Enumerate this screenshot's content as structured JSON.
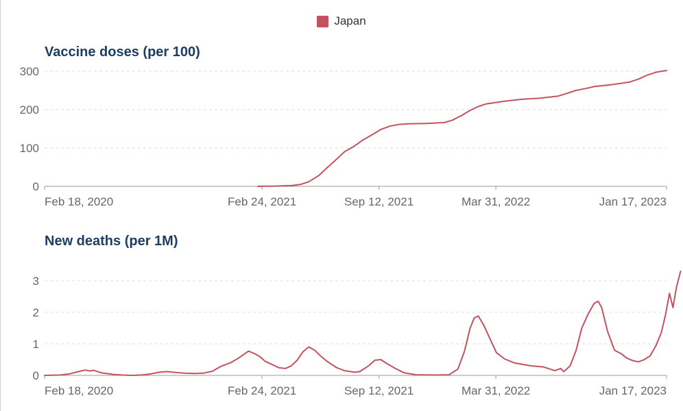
{
  "legend": {
    "label": "Japan",
    "color": "#c4515f"
  },
  "chart_data": [
    {
      "type": "line",
      "title": "Vaccine doses (per 100)",
      "xlabel": "",
      "ylabel": "",
      "ylim": [
        0,
        300
      ],
      "yticks": [
        "0",
        "100",
        "200",
        "300"
      ],
      "x_tick_labels": [
        "Feb 18, 2020",
        "Feb 24, 2021",
        "Sep 12, 2021",
        "Mar 31, 2022",
        "Jan 17, 2023"
      ],
      "x_tick_dates": [
        "2020-02-18",
        "2021-02-24",
        "2021-09-12",
        "2022-03-31",
        "2023-01-17"
      ],
      "x_range": [
        "2020-02-18",
        "2023-01-17"
      ],
      "grid": true,
      "legend_position": "top-center",
      "series": [
        {
          "name": "Japan",
          "color": "#c4515f",
          "points": [
            [
              "2021-02-17",
              0
            ],
            [
              "2021-03-15",
              0.5
            ],
            [
              "2021-04-15",
              2
            ],
            [
              "2021-05-01",
              5
            ],
            [
              "2021-05-15",
              12
            ],
            [
              "2021-06-01",
              28
            ],
            [
              "2021-06-15",
              48
            ],
            [
              "2021-07-01",
              70
            ],
            [
              "2021-07-15",
              90
            ],
            [
              "2021-08-01",
              105
            ],
            [
              "2021-08-15",
              120
            ],
            [
              "2021-09-01",
              135
            ],
            [
              "2021-09-15",
              148
            ],
            [
              "2021-10-01",
              157
            ],
            [
              "2021-10-15",
              161
            ],
            [
              "2021-11-01",
              163
            ],
            [
              "2021-12-01",
              164
            ],
            [
              "2022-01-01",
              166
            ],
            [
              "2022-01-15",
              172
            ],
            [
              "2022-02-01",
              185
            ],
            [
              "2022-02-15",
              198
            ],
            [
              "2022-03-01",
              208
            ],
            [
              "2022-03-15",
              215
            ],
            [
              "2022-04-15",
              222
            ],
            [
              "2022-05-15",
              227
            ],
            [
              "2022-06-15",
              230
            ],
            [
              "2022-07-15",
              235
            ],
            [
              "2022-08-01",
              243
            ],
            [
              "2022-08-15",
              250
            ],
            [
              "2022-09-01",
              255
            ],
            [
              "2022-09-15",
              260
            ],
            [
              "2022-10-15",
              265
            ],
            [
              "2022-11-15",
              272
            ],
            [
              "2022-12-01",
              280
            ],
            [
              "2022-12-15",
              290
            ],
            [
              "2023-01-01",
              298
            ],
            [
              "2023-01-17",
              302
            ]
          ]
        }
      ]
    },
    {
      "type": "line",
      "title": "New deaths (per 1M)",
      "xlabel": "",
      "ylabel": "",
      "ylim": [
        0,
        3.3
      ],
      "yticks": [
        "0",
        "1",
        "2",
        "3"
      ],
      "x_tick_labels": [
        "Feb 18, 2020",
        "Feb 24, 2021",
        "Sep 12, 2021",
        "Mar 31, 2022",
        "Jan 17, 2023"
      ],
      "x_tick_dates": [
        "2020-02-18",
        "2021-02-24",
        "2021-09-12",
        "2022-03-31",
        "2023-01-17"
      ],
      "x_range": [
        "2020-02-18",
        "2023-01-17"
      ],
      "grid": true,
      "legend_position": "top-center",
      "series": [
        {
          "name": "Japan",
          "color": "#c4515f",
          "points": [
            [
              "2020-02-18",
              0
            ],
            [
              "2020-03-15",
              0.01
            ],
            [
              "2020-04-01",
              0.05
            ],
            [
              "2020-04-20",
              0.14
            ],
            [
              "2020-04-28",
              0.17
            ],
            [
              "2020-05-05",
              0.14
            ],
            [
              "2020-05-12",
              0.16
            ],
            [
              "2020-05-25",
              0.08
            ],
            [
              "2020-06-15",
              0.03
            ],
            [
              "2020-07-01",
              0.01
            ],
            [
              "2020-07-15",
              0.0
            ],
            [
              "2020-08-01",
              0.01
            ],
            [
              "2020-08-15",
              0.04
            ],
            [
              "2020-09-01",
              0.1
            ],
            [
              "2020-09-15",
              0.12
            ],
            [
              "2020-10-01",
              0.09
            ],
            [
              "2020-10-15",
              0.07
            ],
            [
              "2020-11-01",
              0.06
            ],
            [
              "2020-11-15",
              0.07
            ],
            [
              "2020-12-01",
              0.13
            ],
            [
              "2020-12-15",
              0.28
            ],
            [
              "2021-01-01",
              0.4
            ],
            [
              "2021-01-15",
              0.55
            ],
            [
              "2021-01-25",
              0.68
            ],
            [
              "2021-02-01",
              0.77
            ],
            [
              "2021-02-10",
              0.7
            ],
            [
              "2021-02-20",
              0.6
            ],
            [
              "2021-03-01",
              0.45
            ],
            [
              "2021-03-15",
              0.33
            ],
            [
              "2021-03-25",
              0.24
            ],
            [
              "2021-04-05",
              0.22
            ],
            [
              "2021-04-15",
              0.3
            ],
            [
              "2021-04-25",
              0.48
            ],
            [
              "2021-05-05",
              0.75
            ],
            [
              "2021-05-15",
              0.9
            ],
            [
              "2021-05-25",
              0.8
            ],
            [
              "2021-06-05",
              0.6
            ],
            [
              "2021-06-15",
              0.45
            ],
            [
              "2021-07-01",
              0.25
            ],
            [
              "2021-07-15",
              0.15
            ],
            [
              "2021-08-01",
              0.1
            ],
            [
              "2021-08-10",
              0.12
            ],
            [
              "2021-08-25",
              0.3
            ],
            [
              "2021-09-05",
              0.48
            ],
            [
              "2021-09-15",
              0.5
            ],
            [
              "2021-09-25",
              0.38
            ],
            [
              "2021-10-10",
              0.22
            ],
            [
              "2021-10-25",
              0.08
            ],
            [
              "2021-11-15",
              0.02
            ],
            [
              "2021-12-15",
              0.01
            ],
            [
              "2022-01-10",
              0.02
            ],
            [
              "2022-01-25",
              0.2
            ],
            [
              "2022-02-05",
              0.75
            ],
            [
              "2022-02-15",
              1.5
            ],
            [
              "2022-02-22",
              1.82
            ],
            [
              "2022-03-01",
              1.88
            ],
            [
              "2022-03-10",
              1.6
            ],
            [
              "2022-03-20",
              1.2
            ],
            [
              "2022-04-01",
              0.72
            ],
            [
              "2022-04-15",
              0.52
            ],
            [
              "2022-05-01",
              0.4
            ],
            [
              "2022-05-15",
              0.35
            ],
            [
              "2022-06-01",
              0.3
            ],
            [
              "2022-06-20",
              0.27
            ],
            [
              "2022-07-10",
              0.15
            ],
            [
              "2022-07-20",
              0.22
            ],
            [
              "2022-07-25",
              0.12
            ],
            [
              "2022-08-05",
              0.3
            ],
            [
              "2022-08-15",
              0.78
            ],
            [
              "2022-08-25",
              1.5
            ],
            [
              "2022-09-05",
              1.95
            ],
            [
              "2022-09-15",
              2.28
            ],
            [
              "2022-09-22",
              2.35
            ],
            [
              "2022-09-28",
              2.15
            ],
            [
              "2022-10-08",
              1.4
            ],
            [
              "2022-10-20",
              0.8
            ],
            [
              "2022-11-01",
              0.68
            ],
            [
              "2022-11-10",
              0.55
            ],
            [
              "2022-11-20",
              0.47
            ],
            [
              "2022-11-30",
              0.43
            ],
            [
              "2022-12-10",
              0.5
            ],
            [
              "2022-12-20",
              0.62
            ],
            [
              "2022-12-30",
              0.95
            ],
            [
              "2023-01-08",
              1.35
            ],
            [
              "2023-01-15",
              1.9
            ],
            [
              "2023-01-22",
              2.6
            ],
            [
              "2023-01-28",
              2.15
            ],
            [
              "2023-02-03",
              2.8
            ],
            [
              "2023-02-10",
              3.3
            ]
          ]
        }
      ]
    }
  ]
}
